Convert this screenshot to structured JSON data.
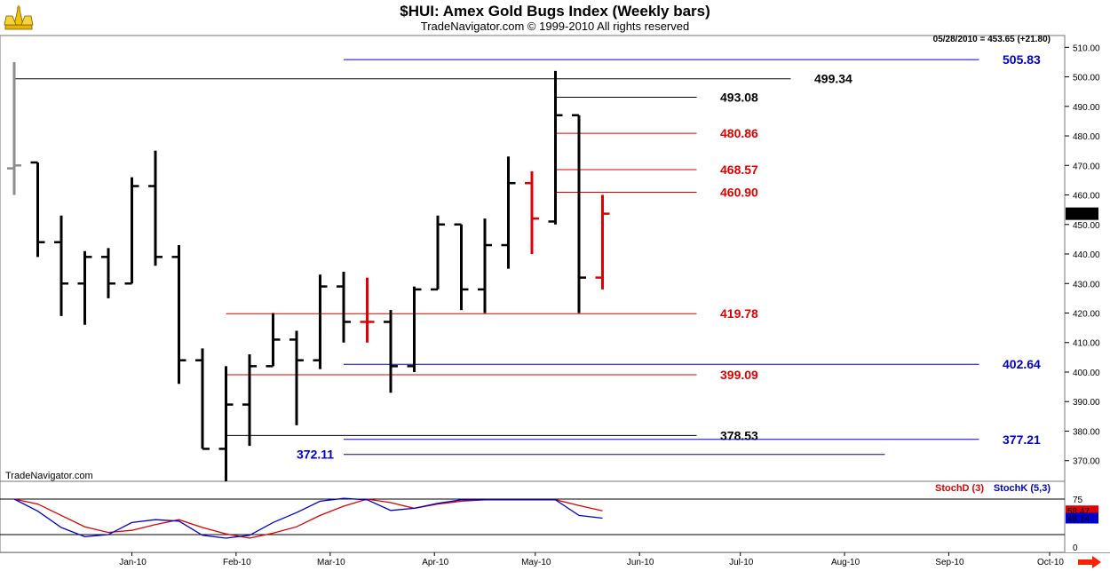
{
  "header": {
    "title": "$HUI:  Amex Gold Bugs Index  (Weekly bars)",
    "subtitle": "TradeNavigator.com © 1999-2010 All rights reserved"
  },
  "readout": "05/28/2010 = 453.65 (+21.80)",
  "watermark": "TradeNavigator.com",
  "colors": {
    "black": "#000000",
    "red": "#e00000",
    "blue": "#0000cc",
    "gray": "#8c8c8c",
    "arrow": "#ff2200"
  },
  "chart_data": [
    {
      "type": "ohlc",
      "title": "$HUI:  Amex Gold Bugs Index  (Weekly bars)",
      "ylim": [
        363,
        514
      ],
      "yticks": [
        "510.00",
        "500.00",
        "490.00",
        "480.00",
        "470.00",
        "460.00",
        "450.00",
        "440.00",
        "430.00",
        "420.00",
        "410.00",
        "400.00",
        "390.00",
        "380.00",
        "370.00"
      ],
      "ytick_values": [
        510,
        500,
        490,
        480,
        470,
        460,
        450,
        440,
        430,
        420,
        410,
        400,
        390,
        380,
        370
      ],
      "x_labels": [
        "Jan-10",
        "Feb-10",
        "Mar-10",
        "Apr-10",
        "May-10",
        "Jun-10",
        "Jul-10",
        "Aug-10",
        "Sep-10",
        "Oct-10"
      ],
      "x_label_dates": [
        "2010-01-01",
        "2010-02-01",
        "2010-03-01",
        "2010-04-01",
        "2010-05-01",
        "2010-06-01",
        "2010-07-01",
        "2010-08-01",
        "2010-09-01",
        "2010-10-01"
      ],
      "last_price_label": "453.65",
      "last_price": 453.65,
      "bars": [
        {
          "date": "2009-11-27",
          "open": 469,
          "high": 505,
          "low": 460,
          "close": 470,
          "color": "gray"
        },
        {
          "date": "2009-12-04",
          "open": 471,
          "high": 471,
          "low": 439,
          "close": 444,
          "color": "black"
        },
        {
          "date": "2009-12-11",
          "open": 444,
          "high": 453,
          "low": 419,
          "close": 430,
          "color": "black"
        },
        {
          "date": "2009-12-18",
          "open": 430,
          "high": 441,
          "low": 416,
          "close": 439,
          "color": "black"
        },
        {
          "date": "2009-12-25",
          "open": 439,
          "high": 442,
          "low": 425,
          "close": 430,
          "color": "black"
        },
        {
          "date": "2010-01-01",
          "open": 430,
          "high": 466,
          "low": 430,
          "close": 463,
          "color": "black"
        },
        {
          "date": "2010-01-08",
          "open": 463,
          "high": 475,
          "low": 436,
          "close": 439,
          "color": "black"
        },
        {
          "date": "2010-01-15",
          "open": 439,
          "high": 443,
          "low": 396,
          "close": 404,
          "color": "black"
        },
        {
          "date": "2010-01-22",
          "open": 404,
          "high": 408,
          "low": 374,
          "close": 374,
          "color": "black"
        },
        {
          "date": "2010-01-29",
          "open": 374,
          "high": 402,
          "low": 363,
          "close": 389,
          "color": "black"
        },
        {
          "date": "2010-02-05",
          "open": 389,
          "high": 406,
          "low": 375,
          "close": 402,
          "color": "black"
        },
        {
          "date": "2010-02-12",
          "open": 402,
          "high": 420,
          "low": 402,
          "close": 411,
          "color": "black"
        },
        {
          "date": "2010-02-19",
          "open": 411,
          "high": 414,
          "low": 382,
          "close": 404,
          "color": "black"
        },
        {
          "date": "2010-02-26",
          "open": 404,
          "high": 433,
          "low": 401,
          "close": 429,
          "color": "black"
        },
        {
          "date": "2010-03-05",
          "open": 429,
          "high": 434,
          "low": 410,
          "close": 417,
          "color": "black"
        },
        {
          "date": "2010-03-12",
          "open": 417,
          "high": 432,
          "low": 410,
          "close": 417,
          "color": "red"
        },
        {
          "date": "2010-03-19",
          "open": 417,
          "high": 421,
          "low": 393,
          "close": 402,
          "color": "black"
        },
        {
          "date": "2010-03-26",
          "open": 402,
          "high": 429,
          "low": 400,
          "close": 428,
          "color": "black"
        },
        {
          "date": "2010-04-02",
          "open": 428,
          "high": 453,
          "low": 428,
          "close": 450,
          "color": "black"
        },
        {
          "date": "2010-04-09",
          "open": 450,
          "high": 450,
          "low": 421,
          "close": 428,
          "color": "black"
        },
        {
          "date": "2010-04-16",
          "open": 428,
          "high": 452,
          "low": 420,
          "close": 443,
          "color": "black"
        },
        {
          "date": "2010-04-23",
          "open": 443,
          "high": 473,
          "low": 435,
          "close": 464,
          "color": "black"
        },
        {
          "date": "2010-04-30",
          "open": 464,
          "high": 468,
          "low": 440,
          "close": 452,
          "color": "red"
        },
        {
          "date": "2010-05-07",
          "open": 451,
          "high": 502,
          "low": 450,
          "close": 487,
          "color": "black"
        },
        {
          "date": "2010-05-14",
          "open": 487,
          "high": 487,
          "low": 420,
          "close": 432,
          "color": "black"
        },
        {
          "date": "2010-05-21",
          "open": 432,
          "high": 460,
          "low": 428,
          "close": 453.65,
          "color": "red"
        }
      ],
      "levels": [
        {
          "value": 505.83,
          "label": "505.83",
          "color": "blue",
          "from": "2010-03-05",
          "to": "2010-09-10",
          "label_at": "2010-09-17"
        },
        {
          "value": 499.34,
          "label": "499.34",
          "color": "black",
          "from": "2009-11-27",
          "to": "2010-07-16",
          "label_at": "2010-07-23"
        },
        {
          "value": 493.08,
          "label": "493.08",
          "color": "black",
          "from": "2010-05-07",
          "to": "2010-06-18",
          "label_at": "2010-06-25"
        },
        {
          "value": 480.86,
          "label": "480.86",
          "color": "red",
          "from": "2010-05-07",
          "to": "2010-06-18",
          "label_at": "2010-06-25"
        },
        {
          "value": 468.57,
          "label": "468.57",
          "color": "red",
          "from": "2010-05-07",
          "to": "2010-06-18",
          "label_at": "2010-06-25"
        },
        {
          "value": 460.9,
          "label": "460.90",
          "color": "red",
          "from": "2010-05-07",
          "to": "2010-06-18",
          "label_at": "2010-06-25"
        },
        {
          "value": 419.78,
          "label": "419.78",
          "color": "red",
          "from": "2010-01-29",
          "to": "2010-06-18",
          "label_at": "2010-06-25"
        },
        {
          "value": 402.64,
          "label": "402.64",
          "color": "blue",
          "from": "2010-03-05",
          "to": "2010-09-10",
          "label_at": "2010-09-17"
        },
        {
          "value": 399.09,
          "label": "399.09",
          "color": "red",
          "from": "2010-01-29",
          "to": "2010-06-18",
          "label_at": "2010-06-25"
        },
        {
          "value": 378.53,
          "label": "378.53",
          "color": "black",
          "from": "2010-01-29",
          "to": "2010-06-18",
          "label_at": "2010-06-25"
        },
        {
          "value": 377.21,
          "label": "377.21",
          "color": "blue",
          "from": "2010-03-05",
          "to": "2010-09-10",
          "label_at": "2010-09-17"
        },
        {
          "value": 372.11,
          "label": "372.11",
          "color": "blue",
          "from": "2010-03-05",
          "to": "2010-08-13",
          "label_at": "2010-02-19"
        }
      ]
    },
    {
      "type": "line",
      "legend": [
        "StochD (3)",
        "StochK (5,3)"
      ],
      "legend_placement": "top-right",
      "ylim": [
        0,
        100
      ],
      "yticks": [
        "75",
        "0"
      ],
      "ytick_values": [
        75,
        0
      ],
      "reference_lines": [
        75,
        25
      ],
      "last_value_labels": [
        "58.47",
        "48.14"
      ],
      "x": [
        "2009-11-27",
        "2009-12-04",
        "2009-12-11",
        "2009-12-18",
        "2009-12-25",
        "2010-01-01",
        "2010-01-08",
        "2010-01-15",
        "2010-01-22",
        "2010-01-29",
        "2010-02-05",
        "2010-02-12",
        "2010-02-19",
        "2010-02-26",
        "2010-03-05",
        "2010-03-12",
        "2010-03-19",
        "2010-03-26",
        "2010-04-02",
        "2010-04-09",
        "2010-04-16",
        "2010-04-23",
        "2010-04-30",
        "2010-05-07",
        "2010-05-14",
        "2010-05-21"
      ],
      "series": [
        {
          "name": "StochD (3)",
          "color": "red",
          "values": [
            75,
            68,
            52,
            36,
            28,
            31,
            39,
            46,
            35,
            26,
            20,
            27,
            36,
            52,
            65,
            75,
            70,
            62,
            68,
            72,
            74,
            74,
            74,
            74,
            66,
            58.47
          ]
        },
        {
          "name": "StochK (5,3)",
          "color": "blue",
          "values": [
            75,
            58,
            35,
            22,
            25,
            42,
            46,
            44,
            24,
            20,
            24,
            42,
            56,
            72,
            76,
            74,
            59,
            62,
            69,
            74,
            74,
            74,
            74,
            74,
            52,
            48.14
          ]
        }
      ]
    }
  ]
}
